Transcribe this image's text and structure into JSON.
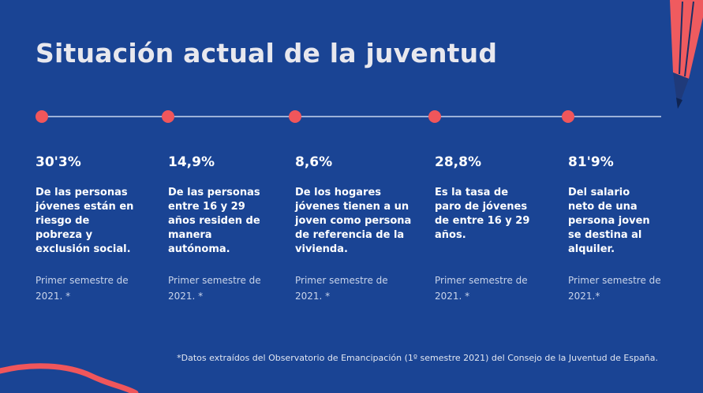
{
  "title": "Situación actual de la juventud",
  "colors": {
    "background": "#1a4494",
    "accent": "#f0565b",
    "line": "#9db2d8"
  },
  "decorations": {
    "corner_top_right": "pencil-icon",
    "corner_bottom_left": "swirl-decoration"
  },
  "stats": [
    {
      "value": "30'3%",
      "description": "De las personas\njóvenes están en\nriesgo de\npobreza y\nexclusión social.",
      "note": "Primer semestre de\n2021. *"
    },
    {
      "value": "14,9%",
      "description": "De las personas\nentre 16 y 29\naños residen de\nmanera\nautónoma.",
      "note": "Primer semestre de\n2021. *"
    },
    {
      "value": "8,6%",
      "description": "De los hogares\njóvenes tienen a un\njoven como persona\nde referencia de la\nvivienda.",
      "note": "Primer semestre de\n2021. *"
    },
    {
      "value": "28,8%",
      "description": "Es la tasa de\nparo de jóvenes\nde entre 16 y 29\naños.",
      "note": "Primer semestre de\n2021. *"
    },
    {
      "value": "81'9%",
      "description": "Del salario\nneto de una\npersona joven\nse destina al\nalquiler.",
      "note": "Primer semestre de\n2021.*"
    }
  ],
  "footnote": "*Datos extraídos del Observatorio de Emancipación (1º semestre 2021) del Consejo de la Juventud de España."
}
